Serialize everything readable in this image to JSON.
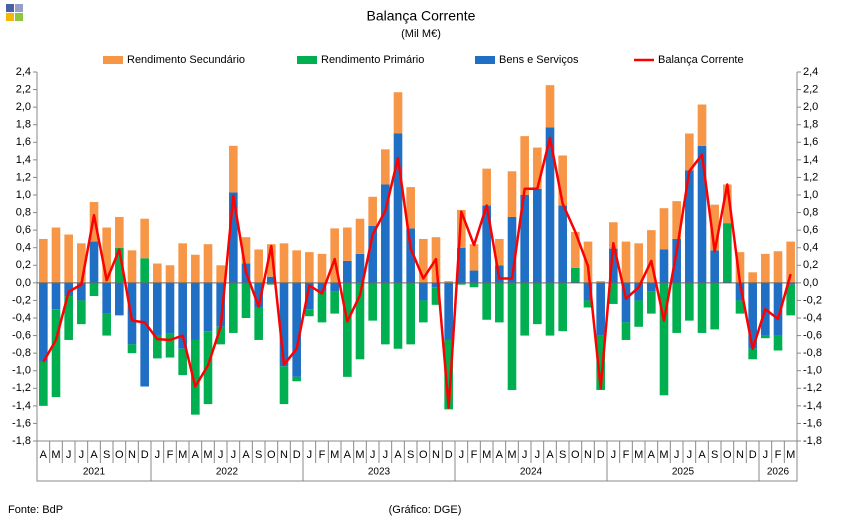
{
  "chart_data": {
    "type": "stacked-bar-line",
    "title": "Balança Corrente",
    "subtitle": "(Mil M€)",
    "source": "Fonte: BdP",
    "credit": "(Gráfico: DGE)",
    "categories": [
      "A",
      "M",
      "J",
      "J",
      "A",
      "S",
      "O",
      "N",
      "D",
      "J",
      "F",
      "M",
      "A",
      "M",
      "J",
      "J",
      "A",
      "S",
      "O",
      "N",
      "D",
      "J",
      "F",
      "M",
      "A",
      "M",
      "J",
      "J",
      "A",
      "S",
      "O",
      "N",
      "D",
      "J",
      "F",
      "M",
      "A",
      "M",
      "J",
      "J",
      "A",
      "S",
      "O",
      "N",
      "D",
      "J",
      "F",
      "M",
      "A",
      "M",
      "J",
      "J",
      "A",
      "S",
      "O",
      "N",
      "D",
      "J",
      "F",
      "M"
    ],
    "category_groups": [
      "2021",
      "2021",
      "2021",
      "2021",
      "2021",
      "2021",
      "2021",
      "2021",
      "2021",
      "2022",
      "2022",
      "2022",
      "2022",
      "2022",
      "2022",
      "2022",
      "2022",
      "2022",
      "2022",
      "2022",
      "2022",
      "2023",
      "2023",
      "2023",
      "2023",
      "2023",
      "2023",
      "2023",
      "2023",
      "2023",
      "2023",
      "2023",
      "2023",
      "2024",
      "2024",
      "2024",
      "2024",
      "2024",
      "2024",
      "2024",
      "2024",
      "2024",
      "2024",
      "2024",
      "2024",
      "2025",
      "2025",
      "2025",
      "2025",
      "2025",
      "2025",
      "2025",
      "2025",
      "2025",
      "2025",
      "2025",
      "2025",
      "2026",
      "2026",
      "2026"
    ],
    "series": [
      {
        "name": "Rendimento Secundário",
        "color": "#f79646",
        "kind": "bar",
        "values": [
          0.5,
          0.63,
          0.55,
          0.45,
          0.45,
          0.63,
          0.35,
          0.37,
          0.45,
          0.22,
          0.2,
          0.45,
          0.32,
          0.44,
          0.2,
          0.53,
          0.3,
          0.38,
          0.37,
          0.45,
          0.37,
          0.35,
          0.33,
          0.62,
          0.38,
          0.4,
          0.33,
          0.4,
          0.47,
          0.47,
          0.5,
          0.52,
          0.02,
          0.43,
          0.3,
          0.42,
          0.3,
          0.52,
          0.67,
          0.47,
          0.48,
          0.57,
          0.41,
          0.47,
          0.02,
          0.3,
          0.47,
          0.45,
          0.6,
          0.47,
          0.43,
          0.42,
          0.47,
          0.52,
          0.44,
          0.35,
          0.12,
          0.33,
          0.36,
          0.47
        ]
      },
      {
        "name": "Rendimento Primário",
        "color": "#00b050",
        "kind": "bar",
        "values": [
          -0.5,
          -1.0,
          -0.5,
          -0.27,
          -0.15,
          -0.25,
          0.4,
          -0.1,
          0.28,
          -0.26,
          -0.27,
          -0.3,
          -0.85,
          -0.83,
          -0.2,
          -0.57,
          -0.4,
          -0.37,
          -0.02,
          -0.43,
          -0.05,
          -0.08,
          -0.35,
          -0.25,
          -1.07,
          -0.87,
          -0.43,
          -0.7,
          -0.75,
          -0.7,
          -0.25,
          -0.2,
          -0.79,
          -0.02,
          -0.05,
          -0.42,
          -0.45,
          -1.22,
          -0.6,
          -0.47,
          -0.6,
          -0.55,
          0.15,
          -0.08,
          -0.62,
          -0.24,
          -0.2,
          -0.3,
          -0.25,
          -1.28,
          -0.57,
          -0.43,
          -0.57,
          -0.53,
          0.66,
          -0.15,
          -0.12,
          -0.03,
          -0.17,
          -0.35
        ]
      },
      {
        "name": "Bens e Serviços",
        "color": "#1f6fc5",
        "kind": "bar",
        "values": [
          -0.9,
          -0.3,
          -0.15,
          -0.2,
          0.47,
          -0.35,
          -0.37,
          -0.7,
          -1.18,
          -0.6,
          -0.58,
          -0.75,
          -0.65,
          -0.55,
          -0.5,
          1.03,
          0.22,
          -0.28,
          0.07,
          -0.95,
          -1.07,
          -0.3,
          -0.1,
          -0.1,
          0.25,
          0.33,
          0.65,
          1.12,
          1.7,
          0.62,
          -0.2,
          -0.05,
          -0.65,
          0.4,
          0.14,
          0.88,
          0.2,
          0.75,
          1.0,
          1.07,
          1.77,
          0.88,
          0.02,
          -0.2,
          -0.6,
          0.39,
          -0.45,
          -0.2,
          -0.1,
          0.38,
          0.5,
          1.28,
          1.56,
          0.37,
          0.02,
          -0.2,
          -0.75,
          -0.6,
          -0.6,
          -0.02
        ]
      },
      {
        "name": "Balança Corrente",
        "color": "#ff0000",
        "kind": "line",
        "values": [
          -0.9,
          -0.65,
          -0.1,
          -0.02,
          0.77,
          0.03,
          0.38,
          -0.43,
          -0.45,
          -0.64,
          -0.65,
          -0.6,
          -1.18,
          -0.94,
          -0.5,
          0.99,
          0.12,
          -0.27,
          0.42,
          -0.93,
          -0.75,
          -0.03,
          -0.12,
          0.27,
          -0.44,
          -0.14,
          0.55,
          0.82,
          1.42,
          0.39,
          0.05,
          0.27,
          -1.42,
          0.81,
          0.43,
          0.88,
          0.05,
          0.05,
          1.07,
          1.07,
          1.65,
          0.9,
          0.58,
          0.19,
          -1.2,
          0.45,
          -0.18,
          -0.05,
          0.25,
          -0.43,
          0.36,
          1.27,
          1.46,
          0.36,
          1.12,
          0.0,
          -0.75,
          -0.3,
          -0.41,
          0.1
        ]
      }
    ],
    "ylim": [
      -1.8,
      2.4
    ],
    "yticks": [
      {
        "value": -1.8,
        "label": "-1,8"
      },
      {
        "value": -1.6,
        "label": "-1,6"
      },
      {
        "value": -1.4,
        "label": "-1,4"
      },
      {
        "value": -1.2,
        "label": "-1,2"
      },
      {
        "value": -1.0,
        "label": "-1,0"
      },
      {
        "value": -0.8,
        "label": "-0,8"
      },
      {
        "value": -0.6,
        "label": "-0,6"
      },
      {
        "value": -0.4,
        "label": "-0,4"
      },
      {
        "value": -0.2,
        "label": "-0,2"
      },
      {
        "value": 0,
        "label": "0,0"
      },
      {
        "value": 0.2,
        "label": "0,2"
      },
      {
        "value": 0.4,
        "label": "0,4"
      },
      {
        "value": 0.6,
        "label": "0,6"
      },
      {
        "value": 0.8,
        "label": "0,8"
      },
      {
        "value": 1.0,
        "label": "1,0"
      },
      {
        "value": 1.2,
        "label": "1,2"
      },
      {
        "value": 1.4,
        "label": "1,4"
      },
      {
        "value": 1.6,
        "label": "1,6"
      },
      {
        "value": 1.8,
        "label": "1,8"
      },
      {
        "value": 2.0,
        "label": "2,0"
      },
      {
        "value": 2.2,
        "label": "2,2"
      },
      {
        "value": 2.4,
        "label": "2,4"
      }
    ],
    "legend": "top"
  }
}
